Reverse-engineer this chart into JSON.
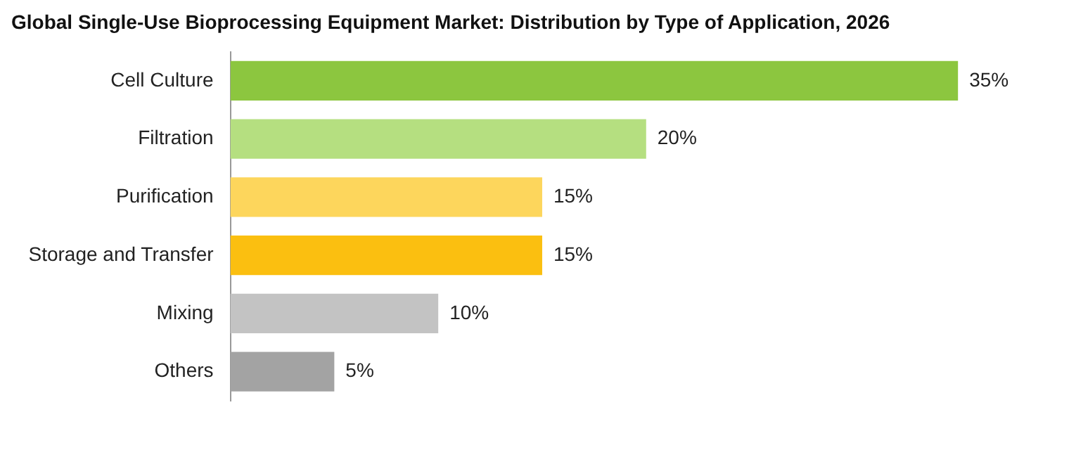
{
  "chart_data": {
    "type": "bar",
    "orientation": "horizontal",
    "title": "Global Single-Use Bioprocessing Equipment Market: Distribution by Type of Application, 2026",
    "categories": [
      "Cell Culture",
      "Filtration",
      "Purification",
      "Storage and Transfer",
      "Mixing",
      "Others"
    ],
    "values": [
      35,
      20,
      15,
      15,
      10,
      5
    ],
    "colors": [
      "#8cc63f",
      "#b5df80",
      "#fdd65c",
      "#fbbf10",
      "#c3c3c3",
      "#a3a3a3"
    ],
    "value_labels": [
      "35%",
      "20%",
      "15%",
      "15%",
      "10%",
      "5%"
    ],
    "legend": false
  }
}
